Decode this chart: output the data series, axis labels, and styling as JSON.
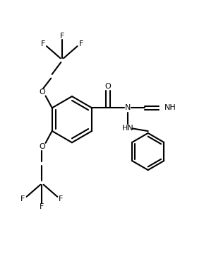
{
  "bg_color": "#ffffff",
  "line_color": "#000000",
  "line_width": 1.5,
  "font_size": 8.0,
  "fig_width": 2.89,
  "fig_height": 3.77,
  "xlim": [
    0,
    10
  ],
  "ylim": [
    0,
    13
  ]
}
